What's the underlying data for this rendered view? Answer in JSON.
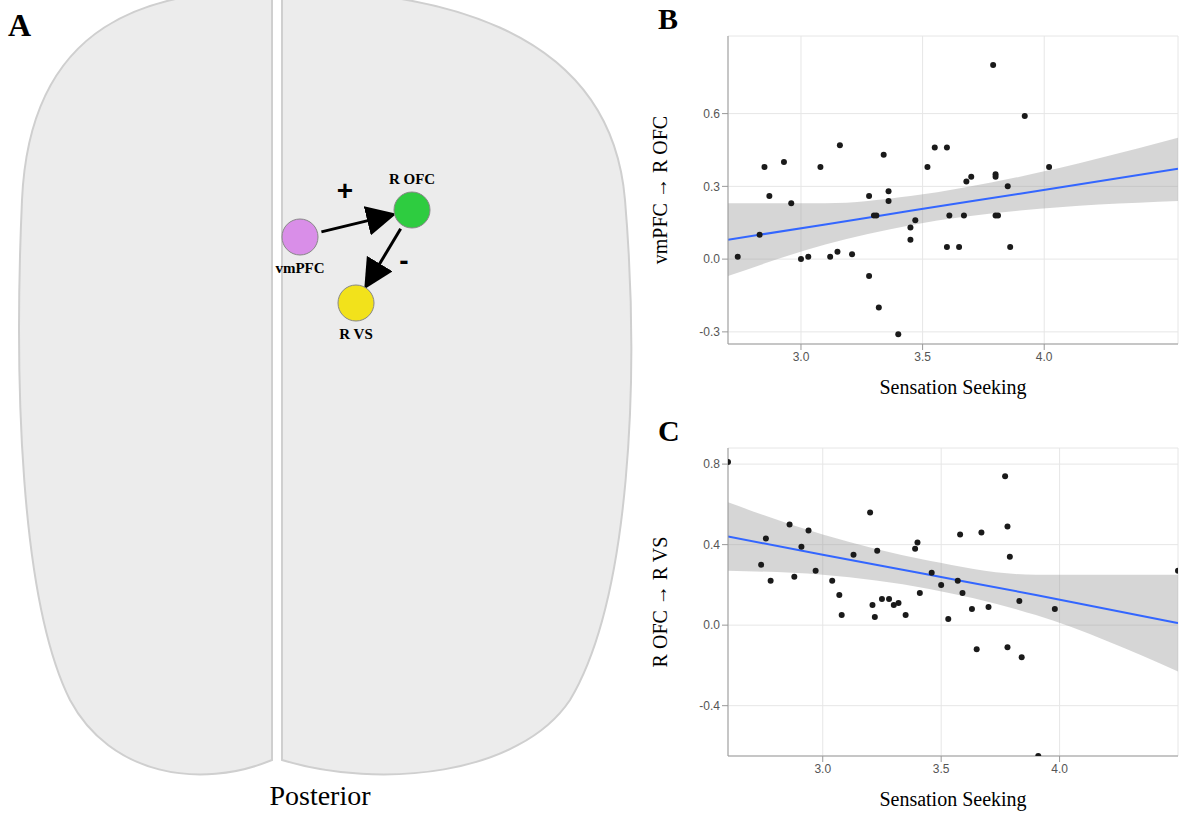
{
  "diagram": {
    "panel": "A",
    "caption": "Posterior",
    "nodes": [
      {
        "label": "vmPFC",
        "color": "#d98ee8"
      },
      {
        "label": "R OFC",
        "color": "#2ecc40"
      },
      {
        "label": "R VS",
        "color": "#f2e21b"
      }
    ],
    "edges": [
      {
        "from": 0,
        "to": 1,
        "sign": "+"
      },
      {
        "from": 1,
        "to": 2,
        "sign": "-"
      }
    ]
  },
  "chart_data": [
    {
      "panel": "B",
      "type": "scatter",
      "x_label": "Sensation Seeking",
      "y_label": "vmPFC → R OFC",
      "xlim": [
        2.7,
        4.55
      ],
      "ylim": [
        -0.35,
        0.92
      ],
      "xticks": [
        {
          "value": 3,
          "label": "3.0"
        },
        3.5,
        {
          "value": 4,
          "label": "4.0"
        }
      ],
      "yticks": [
        -0.3,
        {
          "value": 0,
          "label": "0.0"
        },
        0.3,
        0.6
      ],
      "grid": true,
      "color": "#1a1a1a",
      "x": [
        2.74,
        2.83,
        2.85,
        2.87,
        2.93,
        2.96,
        3.0,
        3.03,
        3.08,
        3.12,
        3.15,
        3.16,
        3.21,
        3.28,
        3.28,
        3.3,
        3.31,
        3.32,
        3.34,
        3.36,
        3.36,
        3.4,
        3.45,
        3.45,
        3.47,
        3.52,
        3.55,
        3.6,
        3.6,
        3.61,
        3.65,
        3.67,
        3.68,
        3.7,
        3.79,
        3.8,
        3.8,
        3.8,
        3.81,
        3.85,
        3.86,
        3.92,
        4.02
      ],
      "values": [
        0.01,
        0.1,
        0.38,
        0.26,
        0.4,
        0.23,
        0.0,
        0.01,
        0.38,
        0.01,
        0.03,
        0.47,
        0.02,
        0.26,
        -0.07,
        0.18,
        0.18,
        -0.2,
        0.43,
        0.24,
        0.28,
        -0.31,
        0.13,
        0.08,
        0.16,
        0.38,
        0.46,
        0.46,
        0.05,
        0.18,
        0.05,
        0.18,
        0.32,
        0.34,
        0.8,
        0.35,
        0.34,
        0.18,
        0.18,
        0.3,
        0.05,
        0.59,
        0.38
      ],
      "fit": {
        "color": "#3366ff",
        "x": [
          2.7,
          3.1,
          3.45,
          3.9,
          4.55
        ],
        "values": [
          0.08,
          0.143,
          0.199,
          0.27,
          0.373
        ],
        "lower": [
          -0.07,
          0.06,
          0.14,
          0.2,
          0.24
        ],
        "upper": [
          0.23,
          0.23,
          0.26,
          0.34,
          0.5
        ]
      }
    },
    {
      "panel": "C",
      "type": "scatter",
      "x_label": "Sensation Seeking",
      "y_label": "R OFC → R VS",
      "xlim": [
        2.6,
        4.5
      ],
      "ylim": [
        -0.65,
        0.88
      ],
      "xticks": [
        {
          "value": 3,
          "label": "3.0"
        },
        3.5,
        {
          "value": 4,
          "label": "4.0"
        }
      ],
      "yticks": [
        -0.4,
        {
          "value": 0,
          "label": "0.0"
        },
        0.4,
        0.8
      ],
      "grid": true,
      "color": "#1a1a1a",
      "x": [
        2.6,
        2.76,
        2.74,
        2.78,
        2.86,
        2.88,
        2.91,
        2.94,
        2.97,
        3.04,
        3.07,
        3.08,
        3.13,
        3.2,
        3.21,
        3.22,
        3.23,
        3.25,
        3.28,
        3.3,
        3.32,
        3.35,
        3.39,
        3.4,
        3.41,
        3.46,
        3.5,
        3.53,
        3.57,
        3.58,
        3.59,
        3.63,
        3.65,
        3.67,
        3.7,
        3.77,
        3.78,
        3.78,
        3.79,
        3.83,
        3.84,
        3.91,
        3.98,
        4.5
      ],
      "values": [
        0.81,
        0.43,
        0.3,
        0.22,
        0.5,
        0.24,
        0.39,
        0.47,
        0.27,
        0.22,
        0.15,
        0.05,
        0.35,
        0.56,
        0.1,
        0.04,
        0.37,
        0.13,
        0.13,
        0.1,
        0.11,
        0.05,
        0.38,
        0.41,
        0.16,
        0.26,
        0.2,
        0.03,
        0.22,
        0.45,
        0.16,
        0.08,
        -0.12,
        0.46,
        0.09,
        0.74,
        0.49,
        -0.11,
        0.34,
        0.12,
        -0.16,
        -0.65,
        0.08,
        0.27
      ],
      "fit": {
        "color": "#3366ff",
        "x": [
          2.6,
          3.0,
          3.45,
          3.9,
          4.5
        ],
        "values": [
          0.44,
          0.35,
          0.25,
          0.15,
          0.01
        ],
        "lower": [
          0.27,
          0.25,
          0.18,
          0.05,
          -0.23
        ],
        "upper": [
          0.61,
          0.45,
          0.32,
          0.25,
          0.25
        ]
      }
    }
  ]
}
